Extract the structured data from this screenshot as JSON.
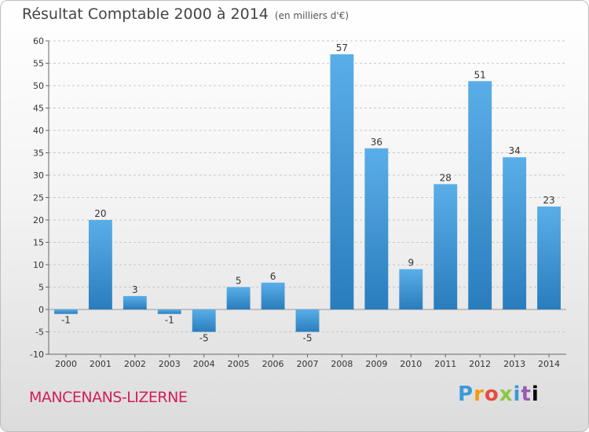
{
  "title": "Résultat Comptable 2000 à 2014",
  "subtitle": "(en milliers d'€)",
  "place": "MANCENANS-LIZERNE",
  "logo": "Proxiti",
  "colors": {
    "bar_top": "#5aaee8",
    "bar_bottom": "#2a7dbd",
    "grid": "#c8c8c8",
    "axis": "#666666",
    "place": "#d21e5a"
  },
  "chart_data": {
    "type": "bar",
    "title": "Résultat Comptable 2000 à 2014 (en milliers d'€)",
    "xlabel": "",
    "ylabel": "",
    "categories": [
      "2000",
      "2001",
      "2002",
      "2003",
      "2004",
      "2005",
      "2006",
      "2007",
      "2008",
      "2009",
      "2010",
      "2011",
      "2012",
      "2013",
      "2014"
    ],
    "values": [
      -1,
      20,
      3,
      -1,
      -5,
      5,
      6,
      -5,
      57,
      36,
      9,
      28,
      51,
      34,
      23
    ],
    "ylim": [
      -10,
      60
    ],
    "yticks": [
      -10,
      -5,
      0,
      5,
      10,
      15,
      20,
      25,
      30,
      35,
      40,
      45,
      50,
      55,
      60
    ],
    "grid": true
  }
}
